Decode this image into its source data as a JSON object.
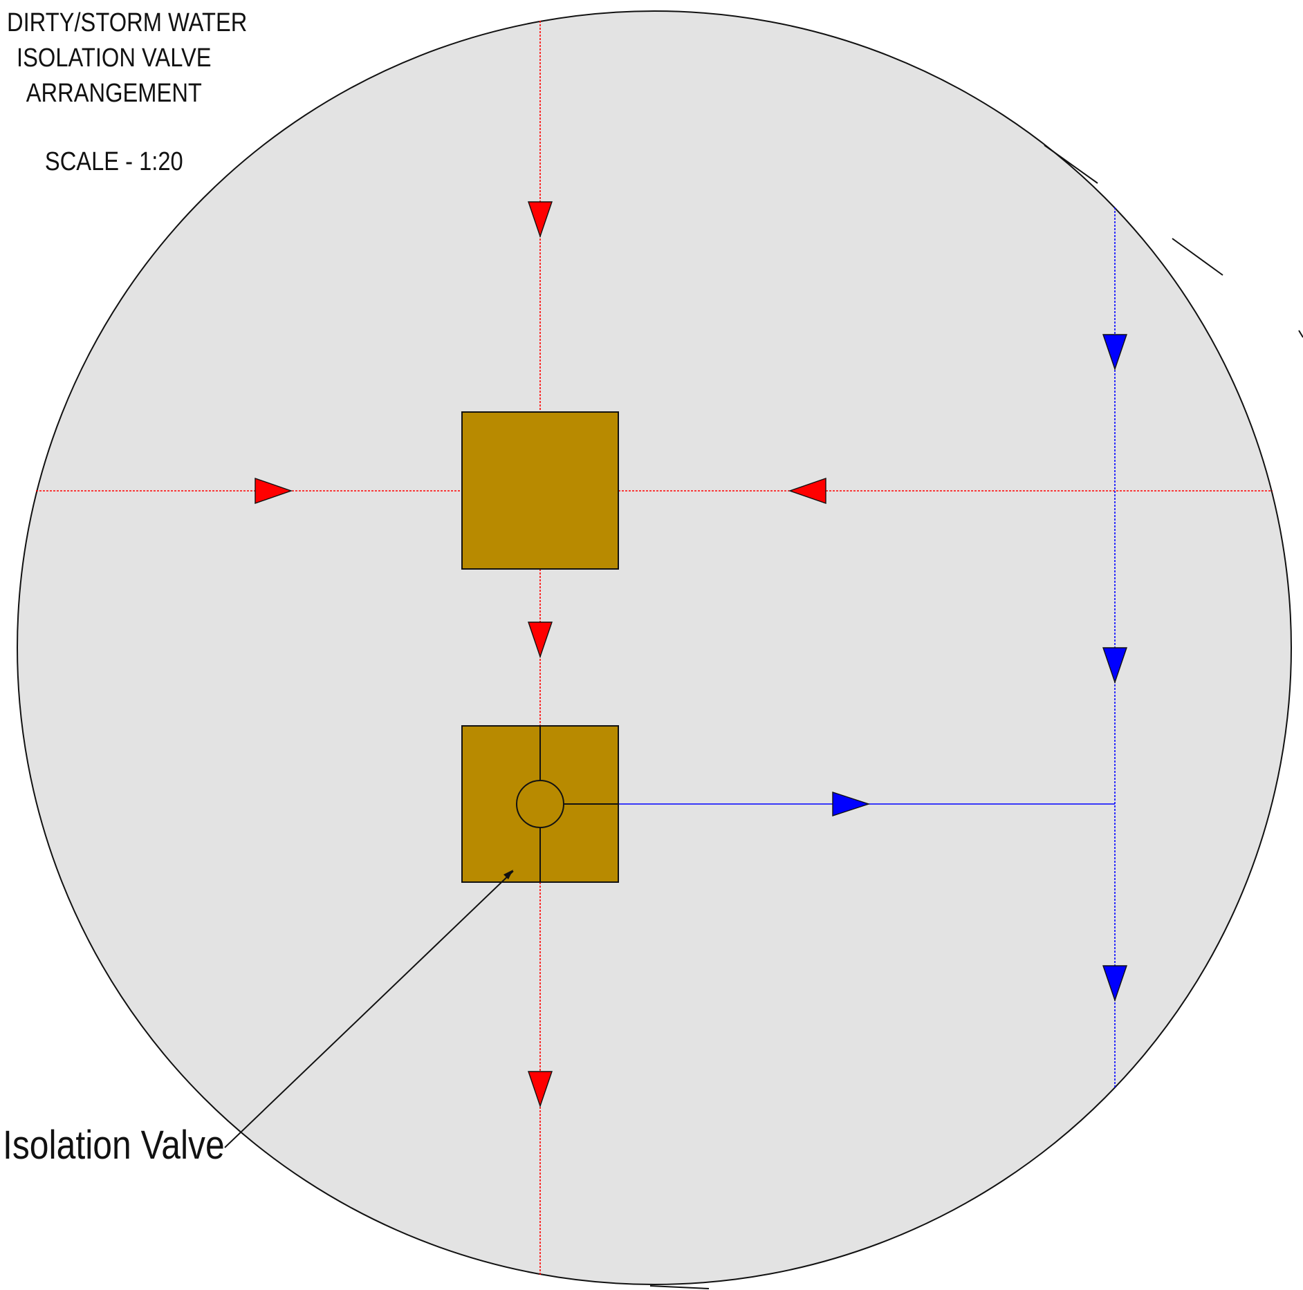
{
  "title": {
    "lines": [
      "DIRTY/STORM WATER",
      "ISOLATION VALVE",
      "ARRANGEMENT"
    ],
    "scale": "SCALE - 1:20"
  },
  "callouts": {
    "isolation_valve": "Isolation Valve"
  },
  "colors": {
    "background": "#ffffff",
    "detail_circle_fill": "#e3e3e3",
    "outline": "#111111",
    "dirty_water": "#ff0000",
    "storm_water": "#0000ff",
    "pit_fill": "#b88a00"
  }
}
